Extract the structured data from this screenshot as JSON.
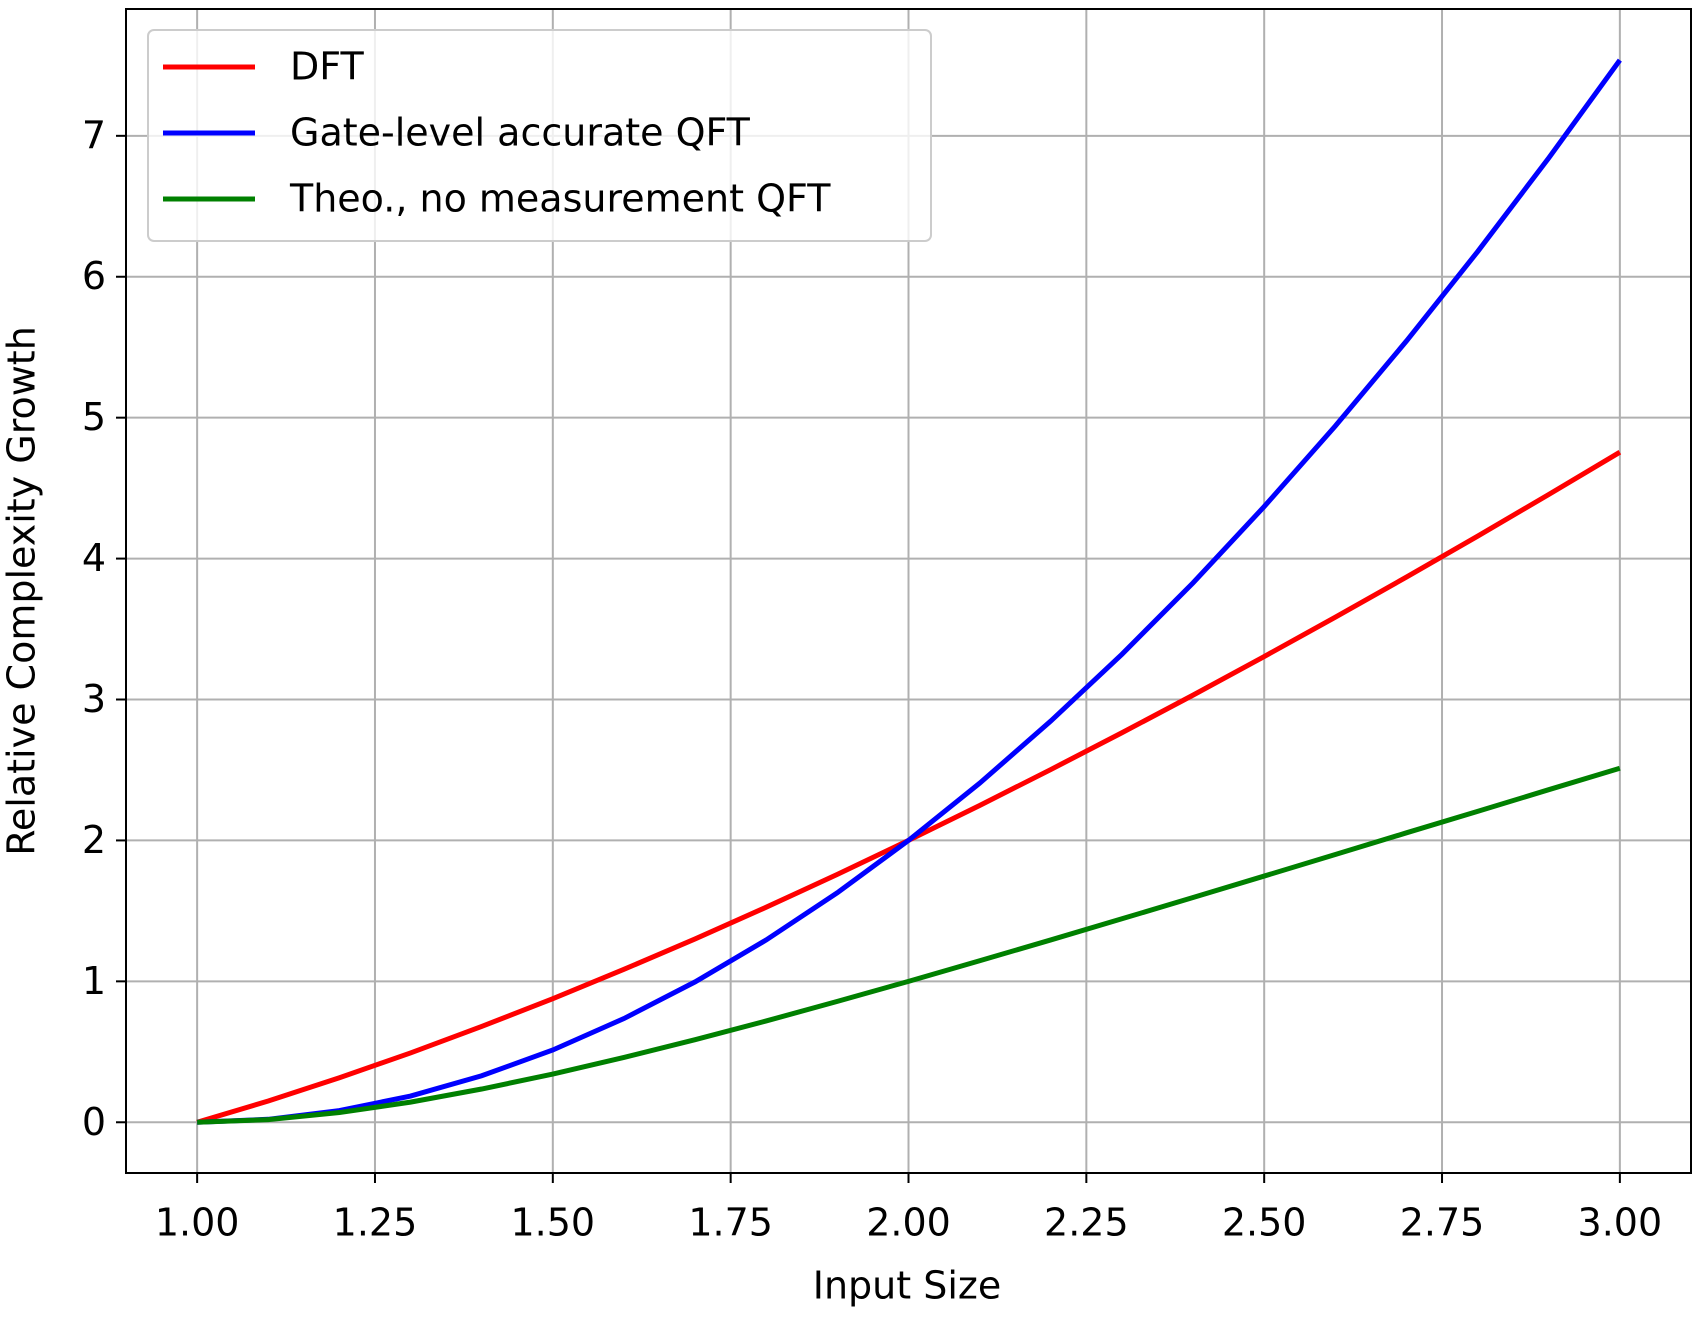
{
  "chart_data": {
    "type": "line",
    "xlabel": "Input Size",
    "ylabel": "Relative Complexity Growth",
    "x": [
      1.0,
      1.1,
      1.2,
      1.3,
      1.4,
      1.5,
      1.6,
      1.7,
      1.8,
      1.9,
      2.0,
      2.1,
      2.2,
      2.3,
      2.4,
      2.5,
      2.6,
      2.7,
      2.8,
      2.9,
      3.0
    ],
    "series": [
      {
        "name": "DFT",
        "color": "#ff0000",
        "values": [
          0,
          0.151,
          0.316,
          0.492,
          0.68,
          0.877,
          1.085,
          1.301,
          1.526,
          1.759,
          2,
          2.248,
          2.503,
          2.764,
          3.031,
          3.305,
          3.584,
          3.869,
          4.159,
          4.455,
          4.755
        ]
      },
      {
        "name": "Gate-level accurate QFT",
        "color": "#0000ff",
        "values": [
          0,
          0.021,
          0.083,
          0.186,
          0.33,
          0.513,
          0.736,
          0.996,
          1.294,
          1.629,
          2,
          2.406,
          2.847,
          3.321,
          3.828,
          4.369,
          4.941,
          5.544,
          6.178,
          6.843,
          7.537
        ]
      },
      {
        "name": "Theo., no measurement QFT",
        "color": "#008000",
        "values": [
          0,
          0.019,
          0.069,
          0.143,
          0.236,
          0.342,
          0.46,
          0.586,
          0.719,
          0.858,
          1,
          1.146,
          1.294,
          1.444,
          1.595,
          1.747,
          1.9,
          2.054,
          2.206,
          2.36,
          2.512
        ]
      }
    ],
    "xlim": [
      0.9,
      3.1
    ],
    "ylim": [
      -0.36,
      7.9
    ],
    "xticks": [
      {
        "value": 1,
        "label": "1.00"
      },
      {
        "value": 1.25,
        "label": "1.25"
      },
      {
        "value": 1.5,
        "label": "1.50"
      },
      {
        "value": 1.75,
        "label": "1.75"
      },
      {
        "value": 2,
        "label": "2.00"
      },
      {
        "value": 2.25,
        "label": "2.25"
      },
      {
        "value": 2.5,
        "label": "2.50"
      },
      {
        "value": 2.75,
        "label": "2.75"
      },
      {
        "value": 3,
        "label": "3.00"
      }
    ],
    "yticks": [
      0,
      1,
      2,
      3,
      4,
      5,
      6,
      7
    ],
    "grid": true,
    "legend": "upper-left"
  }
}
